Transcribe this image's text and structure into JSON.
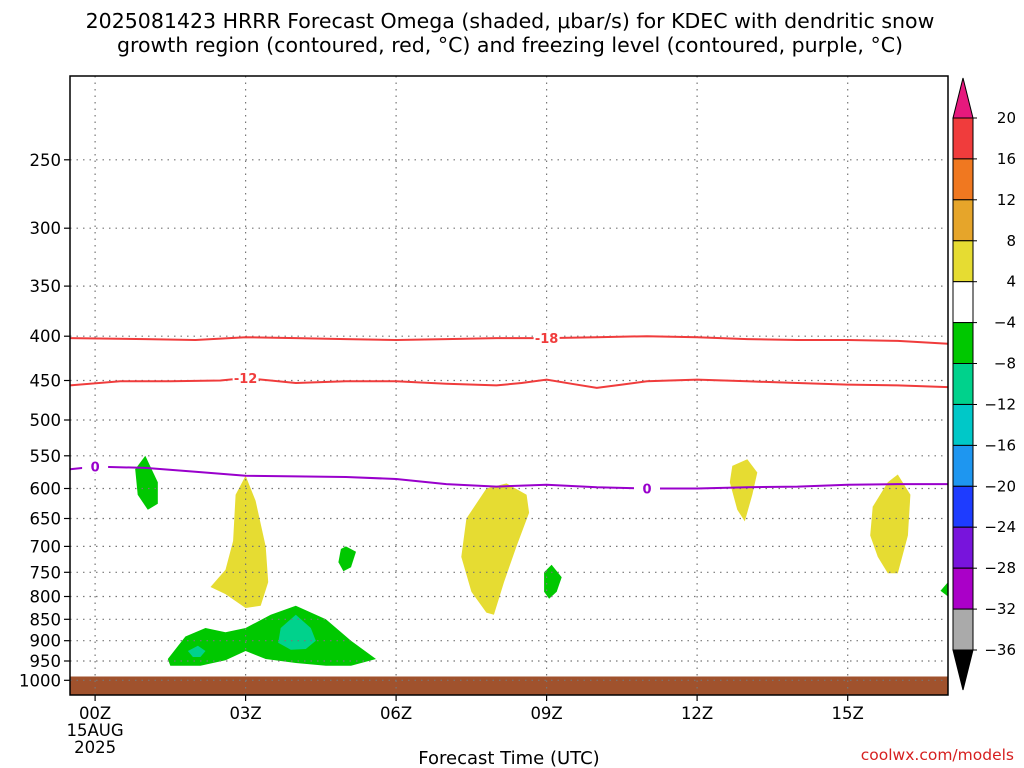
{
  "title": {
    "line1": "2025081423 HRRR Forecast Omega (shaded, μbar/s) for KDEC with dendritic snow",
    "line2": "growth region (contoured, red, °C) and freezing level (contoured, purple, °C)"
  },
  "credit": "coolwx.com/models",
  "colors": {
    "dendritic_contour": "#f03c3c",
    "freezing_contour": "#9900cc",
    "ground": "#a0522d",
    "grid": "#777777"
  },
  "chart_data": {
    "type": "time-height cross section",
    "xlabel": "Forecast Time (UTC)",
    "x_range_hours": [
      -0.5,
      17.0
    ],
    "x_ticks": [
      {
        "hour": 0,
        "label": "00Z",
        "sub1": "15AUG",
        "sub2": "2025"
      },
      {
        "hour": 3,
        "label": "03Z"
      },
      {
        "hour": 6,
        "label": "06Z"
      },
      {
        "hour": 9,
        "label": "09Z"
      },
      {
        "hour": 12,
        "label": "12Z"
      },
      {
        "hour": 15,
        "label": "15Z"
      }
    ],
    "y_axis": {
      "quantity": "pressure (hPa)",
      "scale": "log, inverted",
      "range_hpa": [
        1040,
        200
      ],
      "ticks": [
        "250",
        "300",
        "350",
        "400",
        "450",
        "500",
        "550",
        "600",
        "650",
        "700",
        "750",
        "800",
        "850",
        "900",
        "950",
        "1000"
      ]
    },
    "grid": true,
    "ground_surface_hpa": 990,
    "colorbar": {
      "label_values": [
        "20",
        "16",
        "12",
        "8",
        "4",
        "−4",
        "−8",
        "−12",
        "−16",
        "−20",
        "−24",
        "−28",
        "−32",
        "−36"
      ],
      "bins": [
        {
          "from": 16,
          "to": 20,
          "color": "#f03c3c"
        },
        {
          "from": 12,
          "to": 16,
          "color": "#f07820"
        },
        {
          "from": 8,
          "to": 12,
          "color": "#e6a52a"
        },
        {
          "from": 4,
          "to": 8,
          "color": "#e6dc32"
        },
        {
          "from": -4,
          "to": 4,
          "color": "#ffffff"
        },
        {
          "from": -8,
          "to": -4,
          "color": "#00c800"
        },
        {
          "from": -12,
          "to": -8,
          "color": "#00d28c"
        },
        {
          "from": -16,
          "to": -12,
          "color": "#00c8c8"
        },
        {
          "from": -20,
          "to": -16,
          "color": "#1e96f0"
        },
        {
          "from": -24,
          "to": -20,
          "color": "#1e3cff"
        },
        {
          "from": -28,
          "to": -24,
          "color": "#7814dc"
        },
        {
          "from": -32,
          "to": -28,
          "color": "#aa00c8"
        },
        {
          "from": -36,
          "to": -32,
          "color": "#aaaaaa"
        }
      ],
      "upper_extend_color": "#e6197d",
      "lower_extend_color": "#000000"
    },
    "contours": [
      {
        "name": "dendritic-contour--18",
        "label": "-18",
        "color": "#f03c3c",
        "label_at": {
          "hour": 9.0,
          "hpa": 402
        },
        "points": [
          [
            -0.5,
            402
          ],
          [
            1,
            403
          ],
          [
            2,
            404
          ],
          [
            3,
            401
          ],
          [
            4,
            402
          ],
          [
            5,
            403
          ],
          [
            6,
            404
          ],
          [
            7,
            403
          ],
          [
            8,
            402
          ],
          [
            9,
            402
          ],
          [
            10,
            401
          ],
          [
            11,
            400
          ],
          [
            12,
            401
          ],
          [
            13,
            403
          ],
          [
            14,
            404
          ],
          [
            15,
            404
          ],
          [
            16,
            405
          ],
          [
            17,
            408
          ]
        ]
      },
      {
        "name": "dendritic-contour--12",
        "label": "-12",
        "color": "#f03c3c",
        "label_at": {
          "hour": 3.0,
          "hpa": 447
        },
        "points": [
          [
            -0.5,
            456
          ],
          [
            0.5,
            451
          ],
          [
            1.5,
            451
          ],
          [
            2.5,
            450
          ],
          [
            3.0,
            447
          ],
          [
            4,
            453
          ],
          [
            5,
            451
          ],
          [
            6,
            451
          ],
          [
            7,
            454
          ],
          [
            8,
            456
          ],
          [
            8.5,
            453
          ],
          [
            9,
            449
          ],
          [
            9.5,
            454
          ],
          [
            10,
            459
          ],
          [
            10.5,
            455
          ],
          [
            11,
            451
          ],
          [
            12,
            449
          ],
          [
            13,
            451
          ],
          [
            14,
            453
          ],
          [
            15,
            455
          ],
          [
            16,
            456
          ],
          [
            17,
            458
          ]
        ]
      },
      {
        "name": "freezing-level-contour-0",
        "label": "0",
        "color": "#9900cc",
        "label_at": {
          "hour": 0.0,
          "hpa": 566
        },
        "label2_at": {
          "hour": 11.0,
          "hpa": 600
        },
        "points": [
          [
            -0.5,
            570
          ],
          [
            0,
            566
          ],
          [
            1,
            568
          ],
          [
            2,
            574
          ],
          [
            3,
            580
          ],
          [
            4,
            581
          ],
          [
            5,
            582
          ],
          [
            6,
            585
          ],
          [
            7,
            593
          ],
          [
            8,
            597
          ],
          [
            9,
            594
          ],
          [
            10,
            598
          ],
          [
            11,
            600
          ],
          [
            12,
            600
          ],
          [
            13,
            598
          ],
          [
            14,
            597
          ],
          [
            15,
            594
          ],
          [
            16,
            593
          ],
          [
            17,
            593
          ]
        ]
      }
    ],
    "shaded_regions": [
      {
        "name": "omega-region-yellow-1",
        "bin": "4 to 8",
        "color": "#e6dc32",
        "points": [
          [
            3.0,
            580
          ],
          [
            3.2,
            620
          ],
          [
            3.4,
            700
          ],
          [
            3.45,
            770
          ],
          [
            3.3,
            820
          ],
          [
            3.0,
            825
          ],
          [
            2.6,
            795
          ],
          [
            2.3,
            780
          ],
          [
            2.6,
            745
          ],
          [
            2.75,
            690
          ],
          [
            2.8,
            610
          ]
        ]
      },
      {
        "name": "omega-region-yellow-2",
        "bin": "4 to 8",
        "color": "#e6dc32",
        "points": [
          [
            8.2,
            592
          ],
          [
            8.6,
            610
          ],
          [
            8.65,
            640
          ],
          [
            8.4,
            700
          ],
          [
            8.15,
            770
          ],
          [
            7.95,
            840
          ],
          [
            7.8,
            835
          ],
          [
            7.5,
            790
          ],
          [
            7.3,
            720
          ],
          [
            7.4,
            650
          ],
          [
            7.8,
            600
          ]
        ]
      },
      {
        "name": "omega-region-yellow-3",
        "bin": "4 to 8",
        "color": "#e6dc32",
        "points": [
          [
            13.0,
            555
          ],
          [
            13.2,
            575
          ],
          [
            13.1,
            610
          ],
          [
            12.95,
            655
          ],
          [
            12.8,
            635
          ],
          [
            12.65,
            590
          ],
          [
            12.7,
            565
          ]
        ]
      },
      {
        "name": "omega-region-yellow-4",
        "bin": "4 to 8",
        "color": "#e6dc32",
        "points": [
          [
            16.0,
            578
          ],
          [
            16.25,
            610
          ],
          [
            16.2,
            680
          ],
          [
            16.0,
            752
          ],
          [
            15.8,
            752
          ],
          [
            15.6,
            720
          ],
          [
            15.45,
            680
          ],
          [
            15.5,
            630
          ],
          [
            15.8,
            590
          ]
        ]
      },
      {
        "name": "omega-region-green-1",
        "bin": "-8 to -4",
        "color": "#00c800",
        "points": [
          [
            1.0,
            550
          ],
          [
            1.25,
            590
          ],
          [
            1.25,
            625
          ],
          [
            1.05,
            635
          ],
          [
            0.85,
            610
          ],
          [
            0.8,
            570
          ]
        ]
      },
      {
        "name": "omega-region-green-2",
        "bin": "-8 to -4",
        "color": "#00c800",
        "points": [
          [
            5.0,
            700
          ],
          [
            5.2,
            710
          ],
          [
            5.1,
            740
          ],
          [
            4.95,
            748
          ],
          [
            4.85,
            730
          ],
          [
            4.9,
            705
          ]
        ]
      },
      {
        "name": "omega-region-green-3",
        "bin": "-8 to -4",
        "color": "#00c800",
        "points": [
          [
            9.1,
            735
          ],
          [
            9.3,
            760
          ],
          [
            9.2,
            790
          ],
          [
            9.05,
            805
          ],
          [
            8.95,
            790
          ],
          [
            8.95,
            750
          ]
        ]
      },
      {
        "name": "omega-region-green-4",
        "bin": "-8 to -4",
        "color": "#00c800",
        "points": [
          [
            4.0,
            820
          ],
          [
            4.6,
            850
          ],
          [
            5.1,
            900
          ],
          [
            5.6,
            945
          ],
          [
            5.1,
            962
          ],
          [
            4.6,
            962
          ],
          [
            4.0,
            955
          ],
          [
            3.4,
            945
          ],
          [
            3.0,
            925
          ],
          [
            2.6,
            948
          ],
          [
            2.1,
            962
          ],
          [
            1.5,
            962
          ],
          [
            1.45,
            945
          ],
          [
            1.8,
            890
          ],
          [
            2.2,
            870
          ],
          [
            2.6,
            880
          ],
          [
            3.0,
            870
          ],
          [
            3.5,
            840
          ]
        ]
      },
      {
        "name": "omega-region-green-5",
        "bin": "-8 to -4",
        "color": "#00c800",
        "points": [
          [
            17.0,
            770
          ],
          [
            17.0,
            800
          ],
          [
            16.85,
            788
          ]
        ]
      },
      {
        "name": "omega-region-teal-1",
        "bin": "-12 to -8",
        "color": "#00d28c",
        "points": [
          [
            4.0,
            840
          ],
          [
            4.3,
            870
          ],
          [
            4.4,
            900
          ],
          [
            4.2,
            920
          ],
          [
            3.9,
            922
          ],
          [
            3.65,
            905
          ],
          [
            3.7,
            870
          ]
        ]
      },
      {
        "name": "omega-region-teal-2",
        "bin": "-12 to -8",
        "color": "#00d28c",
        "points": [
          [
            2.05,
            912
          ],
          [
            2.2,
            925
          ],
          [
            2.1,
            940
          ],
          [
            1.95,
            940
          ],
          [
            1.85,
            925
          ]
        ]
      }
    ]
  }
}
